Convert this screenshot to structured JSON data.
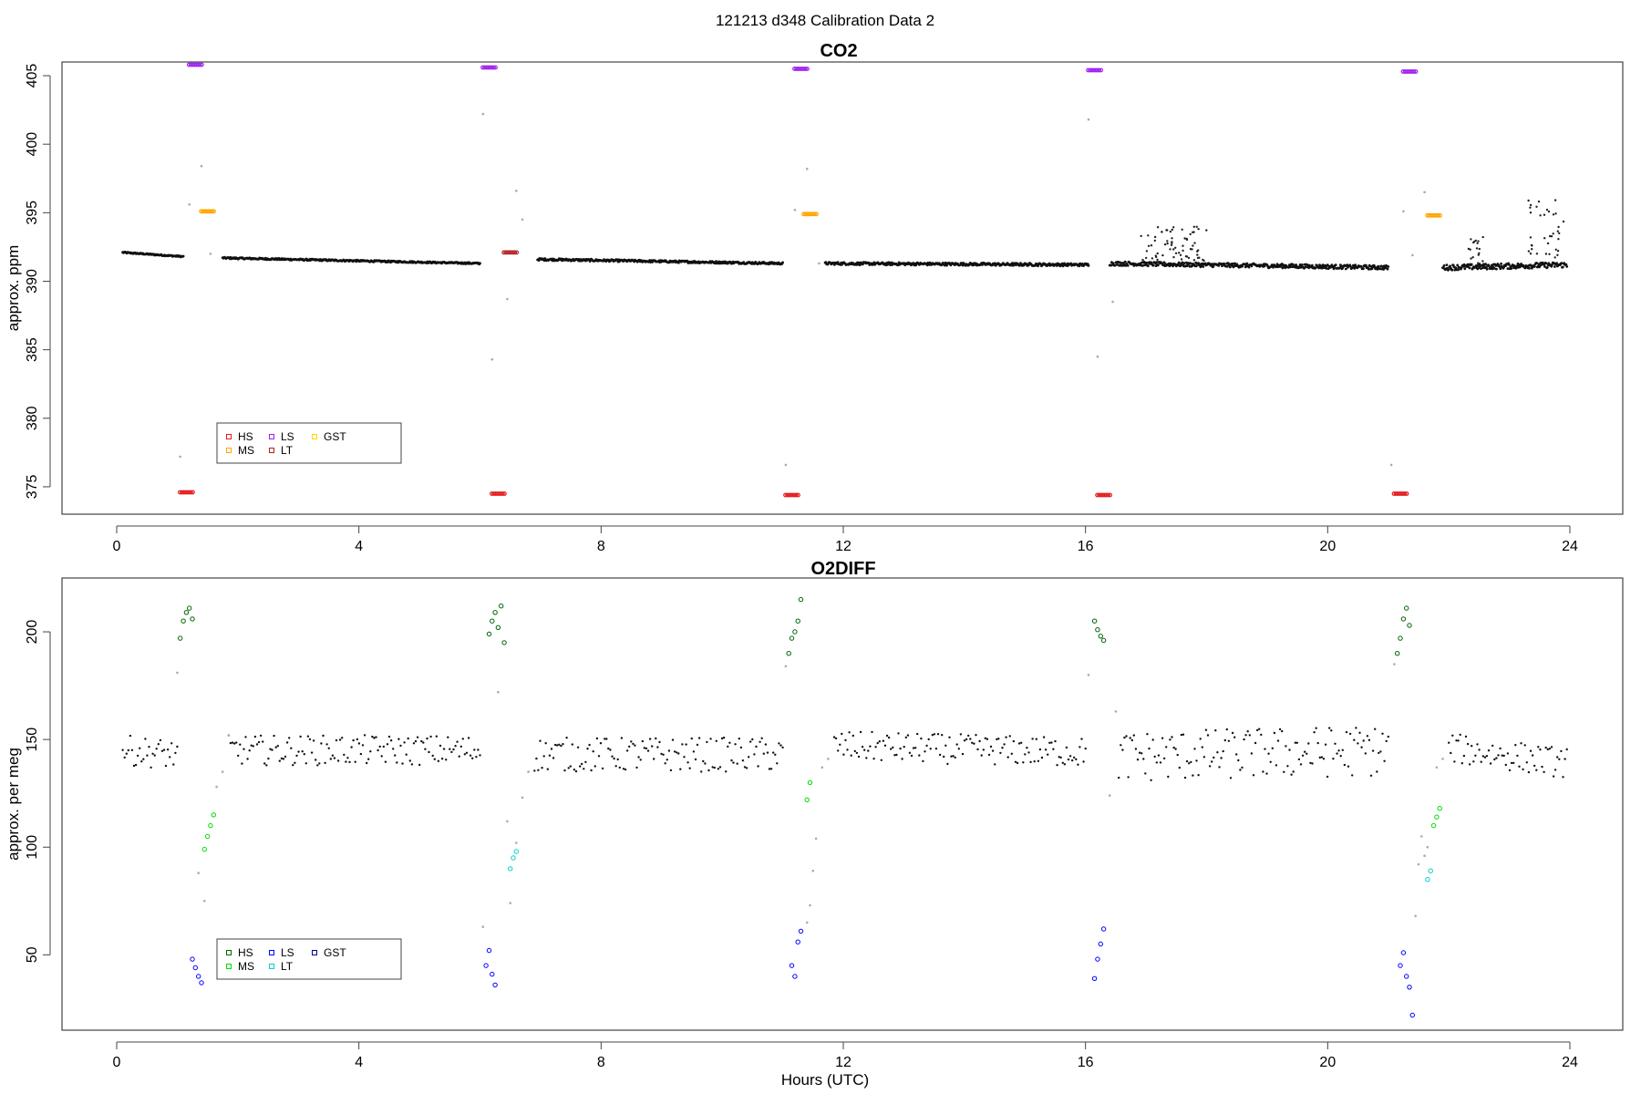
{
  "figure_title": "121213   d348   Calibration Data 2",
  "chart_data": [
    {
      "type": "scatter",
      "title": "CO2",
      "xlabel": "",
      "ylabel": "approx. ppm",
      "xlim": [
        0,
        24
      ],
      "ylim": [
        373,
        406
      ],
      "x_ticks": [
        "0",
        "4",
        "8",
        "12",
        "16",
        "20",
        "24"
      ],
      "y_ticks": [
        "375",
        "380",
        "385",
        "390",
        "395",
        "400",
        "405"
      ],
      "legend": {
        "placement": "bottom-left",
        "entries": [
          {
            "label": "HS",
            "color": "#e41a1c"
          },
          {
            "label": "MS",
            "color": "#ffa500"
          },
          {
            "label": "LS",
            "color": "#a020f0"
          },
          {
            "label": "LT",
            "color": "#b22222"
          },
          {
            "label": "GST",
            "color": "#ffd700"
          }
        ]
      },
      "ambient_segments": [
        {
          "x": [
            0.1,
            1.1
          ],
          "y": [
            392.1,
            391.8
          ],
          "jitter": 0.05
        },
        {
          "x": [
            1.75,
            6.0
          ],
          "y": [
            391.7,
            391.3
          ],
          "jitter": 0.06
        },
        {
          "x": [
            6.95,
            11.0
          ],
          "y": [
            391.6,
            391.3
          ],
          "jitter": 0.08
        },
        {
          "x": [
            11.7,
            16.05
          ],
          "y": [
            391.3,
            391.2
          ],
          "jitter": 0.1
        },
        {
          "x": [
            16.4,
            21.0
          ],
          "y": [
            391.3,
            391.0
          ],
          "jitter": 0.15
        },
        {
          "x": [
            21.9,
            23.95
          ],
          "y": [
            391.0,
            391.2
          ],
          "jitter": 0.2
        }
      ],
      "ambient_scatter": [
        {
          "x": [
            16.9,
            18.0
          ],
          "y": [
            391.5,
            394.0
          ]
        },
        {
          "x": [
            22.3,
            22.6
          ],
          "y": [
            391.0,
            393.5
          ]
        },
        {
          "x": [
            23.3,
            23.9
          ],
          "y": [
            391.5,
            396.0
          ]
        }
      ],
      "calibration": [
        {
          "gas": "HS",
          "color": "#e41a1c",
          "points": [
            [
              1.15,
              374.6
            ],
            [
              6.3,
              374.5
            ],
            [
              11.15,
              374.4
            ],
            [
              16.3,
              374.4
            ],
            [
              21.2,
              374.5
            ]
          ]
        },
        {
          "gas": "LS",
          "color": "#a020f0",
          "points": [
            [
              1.3,
              405.8
            ],
            [
              6.15,
              405.6
            ],
            [
              11.3,
              405.5
            ],
            [
              16.15,
              405.4
            ],
            [
              21.35,
              405.3
            ]
          ]
        },
        {
          "gas": "MS",
          "color": "#ffa500",
          "points": [
            [
              1.5,
              395.1
            ],
            [
              11.45,
              394.9
            ],
            [
              21.75,
              394.8
            ]
          ]
        },
        {
          "gas": "LT",
          "color": "#b22222",
          "points": [
            [
              6.5,
              392.1
            ]
          ]
        }
      ],
      "transition_points": [
        [
          1.05,
          377.2
        ],
        [
          1.2,
          395.6
        ],
        [
          1.4,
          398.4
        ],
        [
          1.55,
          392.0
        ],
        [
          6.05,
          402.2
        ],
        [
          6.2,
          384.3
        ],
        [
          6.45,
          388.7
        ],
        [
          6.6,
          396.6
        ],
        [
          6.7,
          394.5
        ],
        [
          11.05,
          376.6
        ],
        [
          11.2,
          395.2
        ],
        [
          11.4,
          398.2
        ],
        [
          11.6,
          391.3
        ],
        [
          16.05,
          401.8
        ],
        [
          16.2,
          384.5
        ],
        [
          16.45,
          388.5
        ],
        [
          21.05,
          376.6
        ],
        [
          21.25,
          395.1
        ],
        [
          21.6,
          396.5
        ],
        [
          21.4,
          391.9
        ]
      ]
    },
    {
      "type": "scatter",
      "title": "O2DIFF",
      "xlabel": "Hours (UTC)",
      "ylabel": "approx. per meg",
      "xlim": [
        0,
        24
      ],
      "ylim": [
        15,
        225
      ],
      "x_ticks": [
        "0",
        "4",
        "8",
        "12",
        "16",
        "20",
        "24"
      ],
      "y_ticks": [
        "50",
        "100",
        "150",
        "200"
      ],
      "legend": {
        "placement": "bottom-left",
        "entries": [
          {
            "label": "HS",
            "color": "#006400"
          },
          {
            "label": "MS",
            "color": "#00dd00"
          },
          {
            "label": "LS",
            "color": "#0000ff"
          },
          {
            "label": "LT",
            "color": "#00d0d0"
          },
          {
            "label": "GST",
            "color": "#00008b"
          }
        ]
      },
      "ambient_segments": [
        {
          "x": [
            0.1,
            1.0
          ],
          "y": [
            145,
            143
          ],
          "jitter": 7
        },
        {
          "x": [
            1.85,
            6.0
          ],
          "y": [
            145,
            145
          ],
          "jitter": 7
        },
        {
          "x": [
            6.9,
            11.0
          ],
          "y": [
            143,
            143
          ],
          "jitter": 8
        },
        {
          "x": [
            11.85,
            16.0
          ],
          "y": [
            147,
            144
          ],
          "jitter": 7
        },
        {
          "x": [
            16.55,
            21.0
          ],
          "y": [
            142,
            145
          ],
          "jitter": 12
        },
        {
          "x": [
            22.0,
            23.95
          ],
          "y": [
            146,
            139
          ],
          "jitter": 7
        }
      ],
      "calibration": [
        {
          "gas": "HS",
          "color": "#006400",
          "points": [
            [
              1.05,
              197
            ],
            [
              1.1,
              205
            ],
            [
              1.15,
              209
            ],
            [
              1.2,
              211
            ],
            [
              1.25,
              206
            ],
            [
              6.15,
              199
            ],
            [
              6.2,
              205
            ],
            [
              6.25,
              209
            ],
            [
              6.3,
              202
            ],
            [
              6.35,
              212
            ],
            [
              6.4,
              195
            ],
            [
              11.1,
              190
            ],
            [
              11.15,
              197
            ],
            [
              11.2,
              200
            ],
            [
              11.25,
              205
            ],
            [
              11.3,
              215
            ],
            [
              16.15,
              205
            ],
            [
              16.2,
              201
            ],
            [
              16.25,
              198
            ],
            [
              16.3,
              196
            ],
            [
              21.15,
              190
            ],
            [
              21.2,
              197
            ],
            [
              21.25,
              206
            ],
            [
              21.3,
              211
            ],
            [
              21.35,
              203
            ]
          ]
        },
        {
          "gas": "MS",
          "color": "#00dd00",
          "points": [
            [
              1.45,
              99
            ],
            [
              1.5,
              105
            ],
            [
              1.55,
              110
            ],
            [
              1.6,
              115
            ],
            [
              11.4,
              122
            ],
            [
              11.45,
              130
            ],
            [
              21.75,
              110
            ],
            [
              21.8,
              114
            ],
            [
              21.85,
              118
            ]
          ]
        },
        {
          "gas": "LS",
          "color": "#0000ff",
          "points": [
            [
              1.25,
              48
            ],
            [
              1.3,
              44
            ],
            [
              1.35,
              40
            ],
            [
              1.4,
              37
            ],
            [
              6.1,
              45
            ],
            [
              6.15,
              52
            ],
            [
              6.2,
              41
            ],
            [
              6.25,
              36
            ],
            [
              11.15,
              45
            ],
            [
              11.2,
              40
            ],
            [
              11.25,
              56
            ],
            [
              11.3,
              61
            ],
            [
              16.15,
              39
            ],
            [
              16.2,
              48
            ],
            [
              16.25,
              55
            ],
            [
              16.3,
              62
            ],
            [
              21.2,
              45
            ],
            [
              21.25,
              51
            ],
            [
              21.3,
              40
            ],
            [
              21.35,
              35
            ],
            [
              21.4,
              22
            ]
          ]
        },
        {
          "gas": "LT",
          "color": "#00d0d0",
          "points": [
            [
              6.5,
              90
            ],
            [
              6.55,
              95
            ],
            [
              6.6,
              98
            ],
            [
              21.65,
              85
            ],
            [
              21.7,
              89
            ]
          ]
        }
      ],
      "transition_points": [
        [
          1.0,
          181
        ],
        [
          1.35,
          88
        ],
        [
          1.45,
          75
        ],
        [
          1.65,
          128
        ],
        [
          1.75,
          135
        ],
        [
          1.85,
          152
        ],
        [
          6.05,
          63
        ],
        [
          6.3,
          172
        ],
        [
          6.45,
          112
        ],
        [
          6.5,
          74
        ],
        [
          6.6,
          102
        ],
        [
          6.7,
          123
        ],
        [
          6.8,
          135
        ],
        [
          11.05,
          184
        ],
        [
          11.4,
          65
        ],
        [
          11.45,
          73
        ],
        [
          11.5,
          89
        ],
        [
          11.55,
          104
        ],
        [
          11.65,
          137
        ],
        [
          11.75,
          141
        ],
        [
          16.05,
          180
        ],
        [
          16.4,
          124
        ],
        [
          16.5,
          163
        ],
        [
          21.1,
          185
        ],
        [
          21.45,
          68
        ],
        [
          21.5,
          92
        ],
        [
          21.55,
          105
        ],
        [
          21.6,
          96
        ],
        [
          21.65,
          100
        ],
        [
          21.8,
          137
        ],
        [
          21.9,
          141
        ]
      ]
    }
  ]
}
